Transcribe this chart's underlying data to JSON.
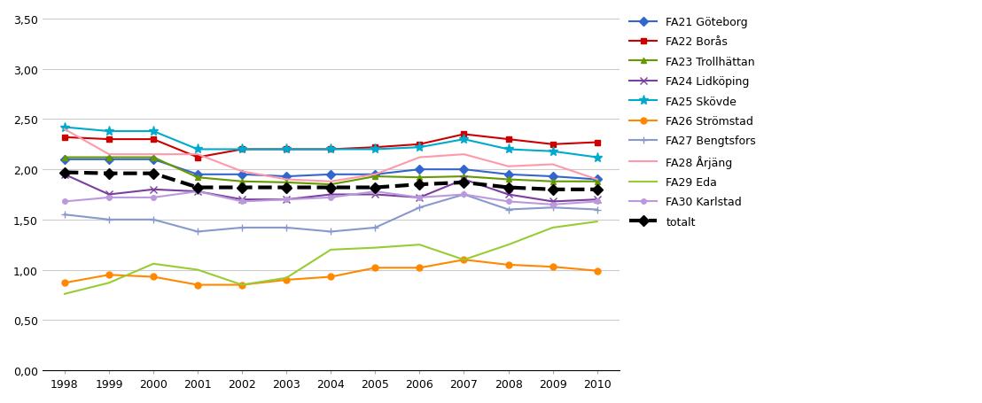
{
  "years": [
    1998,
    1999,
    2000,
    2001,
    2002,
    2003,
    2004,
    2005,
    2006,
    2007,
    2008,
    2009,
    2010
  ],
  "series": [
    {
      "name": "FA21 Göteborg",
      "color": "#3366CC",
      "marker": "D",
      "markersize": 5,
      "linewidth": 1.5,
      "linestyle": "-",
      "values": [
        2.1,
        2.1,
        2.1,
        1.95,
        1.95,
        1.93,
        1.95,
        1.95,
        2.0,
        2.0,
        1.95,
        1.93,
        1.9
      ]
    },
    {
      "name": "FA22 Borås",
      "color": "#CC0000",
      "marker": "s",
      "markersize": 5,
      "linewidth": 1.5,
      "linestyle": "-",
      "values": [
        2.32,
        2.3,
        2.3,
        2.12,
        2.2,
        2.2,
        2.2,
        2.22,
        2.25,
        2.35,
        2.3,
        2.25,
        2.27
      ]
    },
    {
      "name": "FA23 Trollhättan",
      "color": "#669900",
      "marker": "^",
      "markersize": 5,
      "linewidth": 1.5,
      "linestyle": "-",
      "values": [
        2.12,
        2.12,
        2.12,
        1.92,
        1.88,
        1.87,
        1.85,
        1.93,
        1.92,
        1.93,
        1.9,
        1.88,
        1.88
      ]
    },
    {
      "name": "FA24 Lidköping",
      "color": "#7B3F9E",
      "marker": "x",
      "markersize": 6,
      "linewidth": 1.5,
      "linestyle": "-",
      "values": [
        1.95,
        1.75,
        1.8,
        1.78,
        1.7,
        1.7,
        1.75,
        1.75,
        1.72,
        1.9,
        1.75,
        1.68,
        1.7
      ]
    },
    {
      "name": "FA25 Skövde",
      "color": "#00AACC",
      "marker": "*",
      "markersize": 8,
      "linewidth": 1.5,
      "linestyle": "-",
      "values": [
        2.42,
        2.38,
        2.38,
        2.2,
        2.2,
        2.2,
        2.2,
        2.2,
        2.22,
        2.3,
        2.2,
        2.18,
        2.12
      ]
    },
    {
      "name": "FA26 Strömstad",
      "color": "#FF8800",
      "marker": "o",
      "markersize": 5,
      "linewidth": 1.5,
      "linestyle": "-",
      "values": [
        0.87,
        0.95,
        0.93,
        0.85,
        0.85,
        0.9,
        0.93,
        1.02,
        1.02,
        1.1,
        1.05,
        1.03,
        0.99
      ]
    },
    {
      "name": "FA27 Bengtsfors",
      "color": "#8899CC",
      "marker": "+",
      "markersize": 6,
      "linewidth": 1.5,
      "linestyle": "-",
      "values": [
        1.55,
        1.5,
        1.5,
        1.38,
        1.42,
        1.42,
        1.38,
        1.42,
        1.62,
        1.75,
        1.6,
        1.62,
        1.6
      ]
    },
    {
      "name": "FA28 Årjäng",
      "color": "#FF99AA",
      "marker": null,
      "markersize": 5,
      "linewidth": 1.5,
      "linestyle": "-",
      "values": [
        2.4,
        2.15,
        2.15,
        2.15,
        1.98,
        1.9,
        1.88,
        1.95,
        2.12,
        2.15,
        2.03,
        2.05,
        1.9
      ]
    },
    {
      "name": "FA29 Eda",
      "color": "#99CC33",
      "marker": null,
      "markersize": 5,
      "linewidth": 1.5,
      "linestyle": "-",
      "values": [
        0.76,
        0.87,
        1.06,
        1.0,
        0.85,
        0.92,
        1.2,
        1.22,
        1.25,
        1.1,
        1.25,
        1.42,
        1.48
      ]
    },
    {
      "name": "FA30 Karlstad",
      "color": "#BB99DD",
      "marker": "o",
      "markersize": 4,
      "linewidth": 1.5,
      "linestyle": "-",
      "values": [
        1.68,
        1.72,
        1.72,
        1.78,
        1.68,
        1.7,
        1.72,
        1.78,
        1.72,
        1.75,
        1.68,
        1.65,
        1.68
      ]
    },
    {
      "name": "totalt",
      "color": "#000000",
      "marker": "D",
      "markersize": 6,
      "linewidth": 3.0,
      "linestyle": "--",
      "values": [
        1.97,
        1.96,
        1.96,
        1.82,
        1.82,
        1.82,
        1.82,
        1.82,
        1.85,
        1.87,
        1.82,
        1.8,
        1.8
      ]
    }
  ],
  "ylim": [
    0.0,
    3.5
  ],
  "yticks": [
    0.0,
    0.5,
    1.0,
    1.5,
    2.0,
    2.5,
    3.0,
    3.5
  ],
  "ytick_labels": [
    "0,00",
    "0,50",
    "1,00",
    "1,50",
    "2,00",
    "2,50",
    "3,00",
    "3,50"
  ],
  "background_color": "#ffffff",
  "grid_color": "#cccccc"
}
